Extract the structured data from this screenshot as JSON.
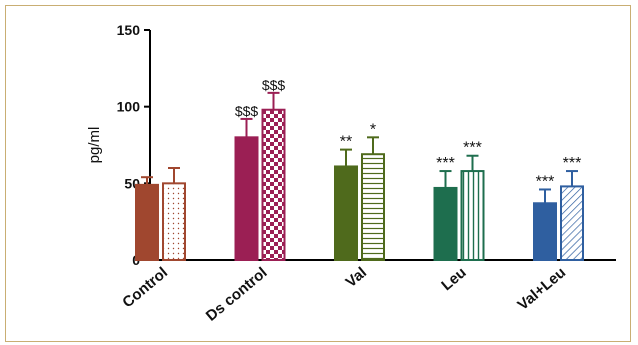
{
  "chart_data": {
    "type": "bar",
    "ylabel": "pg/ml",
    "ylim": [
      0,
      150
    ],
    "yticks": [
      0,
      50,
      100,
      150
    ],
    "categories": [
      "Control",
      "Ds control",
      "Val",
      "Leu",
      "Val+Leu"
    ],
    "series": [
      {
        "values": [
          49,
          80,
          61,
          47,
          37
        ],
        "errors": [
          5,
          12,
          11,
          11,
          9
        ],
        "patterns": [
          "solid",
          "solid",
          "solid",
          "solid",
          "solid"
        ]
      },
      {
        "values": [
          50,
          98,
          69,
          58,
          48
        ],
        "errors": [
          10,
          11,
          11,
          10,
          10
        ],
        "patterns": [
          "dots",
          "checker",
          "hlines",
          "vlines",
          "diagonal"
        ]
      }
    ],
    "colors": [
      "#a0472f",
      "#9b1f54",
      "#4f6a1c",
      "#1e6e4e",
      "#2f5fa0"
    ],
    "annotations": [
      [
        "",
        ""
      ],
      [
        "$$$",
        "$$$"
      ],
      [
        "**",
        "*"
      ],
      [
        "***",
        "***"
      ],
      [
        "***",
        "***"
      ]
    ]
  }
}
